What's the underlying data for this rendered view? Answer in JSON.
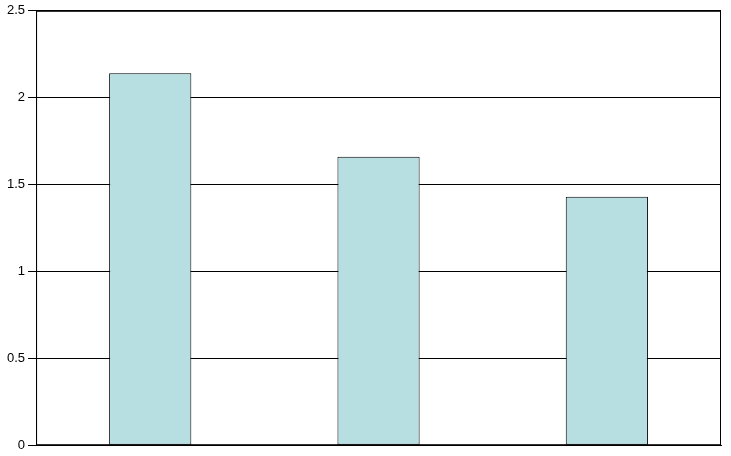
{
  "chart_data": {
    "type": "bar",
    "categories": [
      null,
      null,
      null
    ],
    "values": [
      2.14,
      1.66,
      1.43
    ],
    "color": "#b7dfe2",
    "ylim": [
      0,
      2.5
    ],
    "yticks": [
      0,
      0.5,
      1,
      1.5,
      2,
      2.5
    ],
    "grid": true,
    "tick_labels": "y"
  }
}
